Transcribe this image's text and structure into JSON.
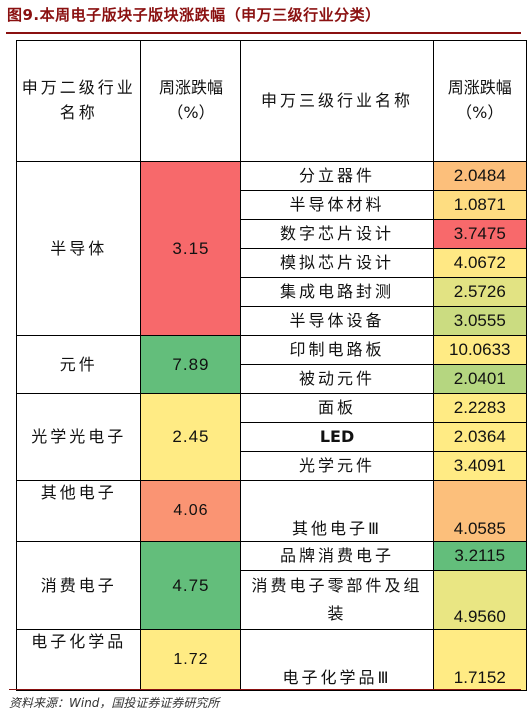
{
  "title": "图9.本周电子版块子版块涨跌幅（申万三级行业分类）",
  "header": {
    "col1": "申万二级行业名称",
    "col2": "周涨跌幅（%）",
    "col3": "申万三级行业名称",
    "col4": "周涨跌幅（%）"
  },
  "groups": [
    {
      "name": "半导体",
      "change": "3.15",
      "color": "#f7696b",
      "subs": [
        {
          "name": "分立器件",
          "change": "2.0484",
          "color": "#fcbf7b"
        },
        {
          "name": "半导体材料",
          "change": "1.0871",
          "color": "#fedd81"
        },
        {
          "name": "数字芯片设计",
          "change": "3.7475",
          "color": "#f8696b"
        },
        {
          "name": "模拟芯片设计",
          "change": "4.0672",
          "color": "#ffe884"
        },
        {
          "name": "集成电路封测",
          "change": "2.5726",
          "color": "#e2e383"
        },
        {
          "name": "半导体设备",
          "change": "3.0555",
          "color": "#cbdc81"
        }
      ]
    },
    {
      "name": "元件",
      "change": "7.89",
      "color": "#63be7b",
      "subs": [
        {
          "name": "印制电路板",
          "change": "10.0633",
          "color": "#ffeb84"
        },
        {
          "name": "被动元件",
          "change": "2.0401",
          "color": "#b5d680"
        }
      ]
    },
    {
      "name": "光学光电子",
      "change": "2.45",
      "color": "#ffeb84",
      "subs": [
        {
          "name": "面板",
          "change": "2.2283",
          "color": "#ffeb84"
        },
        {
          "name": "LED",
          "change": "2.0364",
          "color": "#ffeb84"
        },
        {
          "name": "光学元件",
          "change": "3.4091",
          "color": "#ffeb84"
        }
      ]
    },
    {
      "name": "其他电子",
      "change": "4.06",
      "color": "#fa9473",
      "subs": [
        {
          "name": "其他电子Ⅲ",
          "change": "4.0585",
          "color": "#fcbf7b"
        }
      ]
    },
    {
      "name": "消费电子",
      "change": "4.75",
      "color": "#63be7b",
      "subs": [
        {
          "name": "品牌消费电子",
          "change": "3.2115",
          "color": "#63be7b"
        },
        {
          "name": "消费电子零部件及组装",
          "change": "4.9560",
          "color": "#e9e683"
        }
      ]
    },
    {
      "name": "电子化学品",
      "change": "1.72",
      "color": "#ffeb84",
      "subs": [
        {
          "name": "电子化学品Ⅲ",
          "change": "1.7152",
          "color": "#ffeb84"
        }
      ]
    }
  ],
  "source": "资料来源：Wind，国投证券证券研究所"
}
